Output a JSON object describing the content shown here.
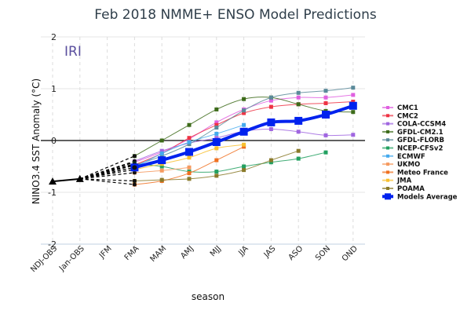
{
  "chart_data": {
    "type": "line",
    "title": "Feb 2018 NMME+ ENSO Model Predictions",
    "watermark": "IRI",
    "xlabel": "season",
    "ylabel": "NINO3.4 SST Anomaly (°C)",
    "ylim": [
      -2,
      2
    ],
    "yticks": [
      -2,
      -1,
      0,
      1,
      2
    ],
    "grid": true,
    "legend_position": "right",
    "categories": [
      "NDJ-OBS",
      "Jan-OBS",
      "JFM",
      "FMA",
      "MAM",
      "AMJ",
      "MJJ",
      "JJA",
      "JAS",
      "ASO",
      "SON",
      "OND"
    ],
    "observed": {
      "name": "Observed",
      "color": "#000000",
      "values": [
        -0.79,
        -0.74,
        null,
        null,
        null,
        null,
        null,
        null,
        null,
        null,
        null,
        null
      ]
    },
    "series": [
      {
        "name": "CMC1",
        "color": "#e060e0",
        "values": [
          null,
          null,
          null,
          -0.42,
          -0.22,
          0.03,
          0.35,
          0.6,
          0.77,
          0.83,
          0.83,
          0.88
        ]
      },
      {
        "name": "CMC2",
        "color": "#ee3344",
        "values": [
          null,
          null,
          null,
          -0.47,
          -0.25,
          0.05,
          0.3,
          0.53,
          0.65,
          0.7,
          0.72,
          0.75
        ]
      },
      {
        "name": "COLA-CCSM4",
        "color": "#a066e0",
        "values": [
          null,
          null,
          null,
          -0.4,
          -0.2,
          -0.05,
          0.05,
          0.18,
          0.22,
          0.17,
          0.1,
          0.11
        ]
      },
      {
        "name": "GFDL-CM2.1",
        "color": "#3d6b1a",
        "values": [
          null,
          null,
          null,
          -0.3,
          0.0,
          0.3,
          0.6,
          0.8,
          0.83,
          0.7,
          0.57,
          0.55
        ]
      },
      {
        "name": "GFDL-FLORB",
        "color": "#5a8a9a",
        "values": [
          null,
          null,
          null,
          -0.48,
          -0.3,
          -0.07,
          0.25,
          0.58,
          0.83,
          0.92,
          0.96,
          1.02
        ]
      },
      {
        "name": "NCEP-CFSv2",
        "color": "#22a060",
        "values": [
          null,
          null,
          null,
          -0.45,
          -0.5,
          -0.6,
          -0.6,
          -0.5,
          -0.42,
          -0.35,
          -0.23,
          null
        ]
      },
      {
        "name": "ECMWF",
        "color": "#44aaee",
        "values": [
          null,
          null,
          null,
          -0.52,
          -0.25,
          -0.03,
          0.13,
          0.3,
          null,
          null,
          null,
          null
        ]
      },
      {
        "name": "UKMO",
        "color": "#f59a60",
        "values": [
          null,
          null,
          null,
          -0.62,
          -0.58,
          -0.52,
          null,
          null,
          null,
          null,
          null,
          null
        ]
      },
      {
        "name": "Meteo France",
        "color": "#f07020",
        "values": [
          null,
          null,
          null,
          -0.85,
          -0.78,
          -0.63,
          -0.38,
          -0.12,
          null,
          null,
          null,
          null
        ]
      },
      {
        "name": "JMA",
        "color": "#f8c030",
        "values": [
          null,
          null,
          null,
          -0.56,
          -0.45,
          -0.33,
          -0.15,
          -0.08,
          null,
          null,
          null,
          null
        ]
      },
      {
        "name": "POAMA",
        "color": "#8a7a2a",
        "values": [
          null,
          null,
          null,
          -0.78,
          -0.76,
          -0.74,
          -0.68,
          -0.57,
          -0.38,
          -0.2,
          null,
          null
        ]
      },
      {
        "name": "Models Average",
        "color": "#0022ee",
        "values": [
          null,
          null,
          null,
          -0.52,
          -0.38,
          -0.22,
          -0.03,
          0.17,
          0.35,
          0.38,
          0.5,
          0.67
        ]
      }
    ]
  }
}
